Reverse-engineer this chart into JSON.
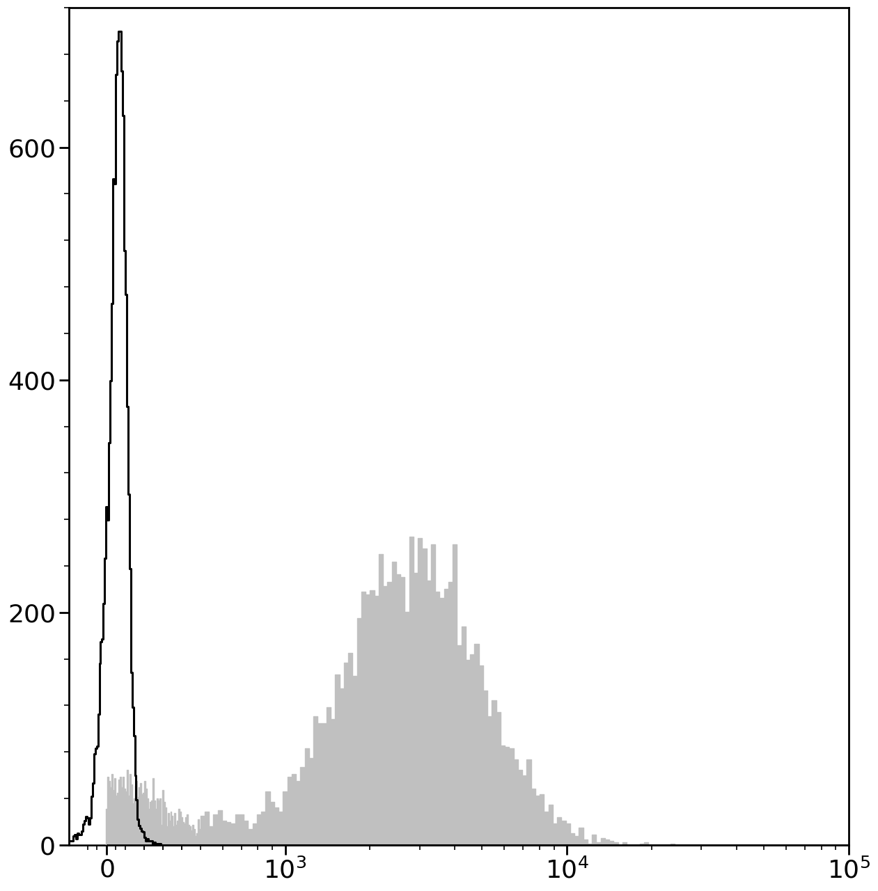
{
  "background_color": "#ffffff",
  "black_hist_color": "#000000",
  "gray_hist_color": "#c0c0c0",
  "ylim": [
    0,
    720
  ],
  "yticks": [
    0,
    200,
    400,
    600
  ],
  "xlim_low": -200,
  "xlim_high": 100000,
  "linthresh": 500,
  "linscale": 0.3,
  "xtick_positions": [
    0,
    1000,
    10000,
    100000
  ],
  "xtick_labels": [
    "$0$",
    "$10^{3}$",
    "$10^{4}$",
    "$10^{5}$"
  ],
  "tick_labelsize": 26,
  "linewidth_black": 2.2,
  "linewidth_gray": 1.0,
  "spine_linewidth": 2.0,
  "figsize": [
    12.61,
    12.8
  ],
  "dpi": 100,
  "black_target_peak": 700,
  "gray_target_peak": 265
}
